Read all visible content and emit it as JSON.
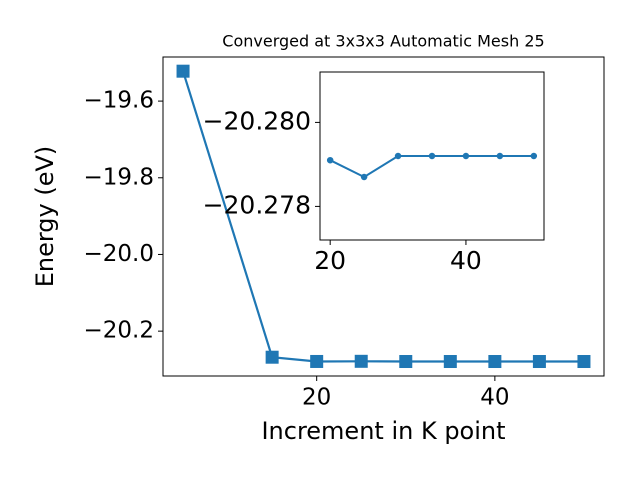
{
  "chart_data": [
    {
      "type": "line",
      "title": "Converged at 3x3x3 Automatic Mesh 25",
      "xlabel": "Increment in K point",
      "ylabel": "Energy (eV)",
      "x": [
        5,
        15,
        20,
        25,
        30,
        35,
        40,
        45,
        50
      ],
      "series": [
        {
          "color": "#1f77b4",
          "marker": "square",
          "values": [
            -19.522,
            -20.268,
            -20.2791,
            -20.2787,
            -20.2792,
            -20.2792,
            -20.2792,
            -20.2792,
            -20.2792
          ]
        }
      ],
      "xlim": [
        2.75,
        52.25
      ],
      "xticks": [
        20,
        40
      ],
      "ylim": [
        -20.317,
        -19.485
      ],
      "yticks": [
        {
          "value": -20.2,
          "label": "−20.2"
        },
        {
          "value": -20.0,
          "label": "−20.0"
        },
        {
          "value": -19.8,
          "label": "−19.8"
        },
        {
          "value": -19.6,
          "label": "−19.6"
        }
      ]
    },
    {
      "type": "line",
      "x": [
        20,
        25,
        30,
        35,
        40,
        45,
        50
      ],
      "series": [
        {
          "color": "#1f77b4",
          "marker": "circle",
          "values": [
            -20.2791,
            -20.2787,
            -20.2792,
            -20.2792,
            -20.2792,
            -20.2792,
            -20.2792
          ]
        }
      ],
      "xlim": [
        18.5,
        51.5
      ],
      "xticks": [
        20,
        40
      ],
      "ylim": [
        -20.2772,
        -20.2812
      ],
      "yticks": [
        {
          "value": -20.278,
          "label": "−20.278"
        },
        {
          "value": -20.28,
          "label": "−20.280"
        }
      ]
    }
  ]
}
